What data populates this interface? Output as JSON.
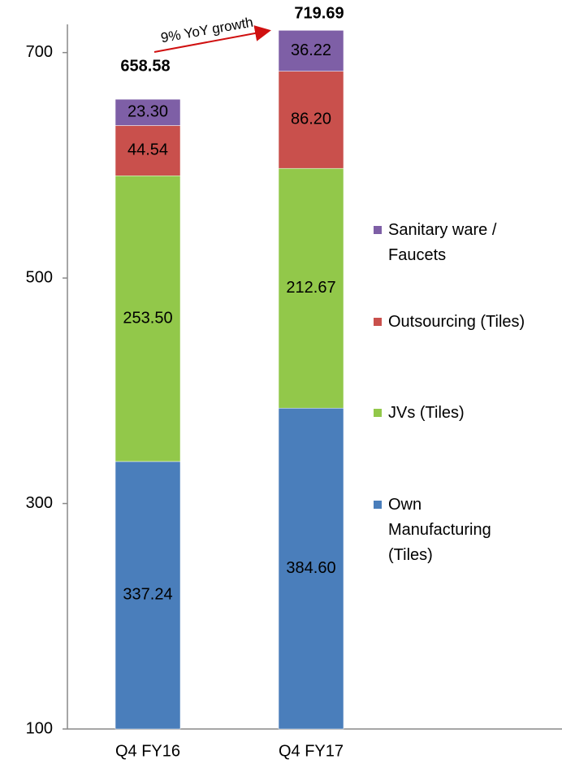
{
  "chart_data": {
    "type": "stacked_bar",
    "categories": [
      "Q4 FY16",
      "Q4 FY17"
    ],
    "series": [
      {
        "name": "Own Manufacturing (Tiles)",
        "color": "#4a7ebb",
        "values": [
          337.24,
          384.6
        ],
        "value_labels": [
          "337.24",
          "384.60"
        ]
      },
      {
        "name": "JVs (Tiles)",
        "color": "#92c84a",
        "values": [
          253.5,
          212.67
        ],
        "value_labels": [
          "253.50",
          "212.67"
        ]
      },
      {
        "name": "Outsourcing (Tiles)",
        "color": "#c9504c",
        "values": [
          44.54,
          86.2
        ],
        "value_labels": [
          "44.54",
          "86.20"
        ]
      },
      {
        "name": "Sanitary ware / Faucets",
        "color": "#7e5fa6",
        "values": [
          23.3,
          36.22
        ],
        "value_labels": [
          "23.30",
          "36.22"
        ]
      }
    ],
    "totals": [
      658.58,
      719.69
    ],
    "annotation": "9% YoY growth",
    "ylim": [
      100,
      725
    ],
    "yticks": [
      100,
      300,
      500,
      700
    ]
  }
}
